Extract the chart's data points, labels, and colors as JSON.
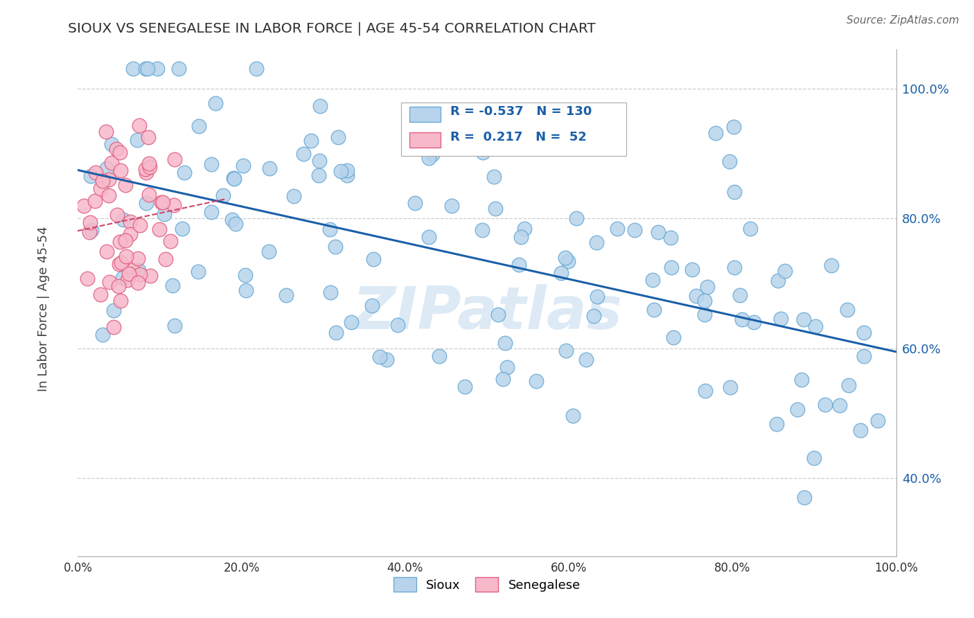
{
  "title": "SIOUX VS SENEGALESE IN LABOR FORCE | AGE 45-54 CORRELATION CHART",
  "source_text": "Source: ZipAtlas.com",
  "ylabel": "In Labor Force | Age 45-54",
  "watermark": "ZIPatlas",
  "sioux_R": -0.537,
  "sioux_N": 130,
  "senegalese_R": 0.217,
  "senegalese_N": 52,
  "sioux_color": "#b8d4ec",
  "sioux_edge_color": "#6aaad4",
  "senegalese_color": "#f7b8ca",
  "senegalese_edge_color": "#e06080",
  "sioux_line_color": "#1a5fa8",
  "senegalese_line_color": "#cc4466",
  "background_color": "#ffffff",
  "grid_color": "#cccccc",
  "title_color": "#303030",
  "legend_text_color": "#1a5fa8",
  "ytick_color": "#1a5fa8",
  "xtick_color": "#303030",
  "xlim": [
    0.0,
    1.0
  ],
  "ylim": [
    0.28,
    1.06
  ],
  "xtick_values": [
    0.0,
    0.2,
    0.4,
    0.6,
    0.8,
    1.0
  ],
  "xtick_labels": [
    "0.0%",
    "20.0%",
    "40.0%",
    "60.0%",
    "80.0%",
    "100.0%"
  ],
  "ytick_values": [
    0.4,
    0.6,
    0.8,
    1.0
  ],
  "ytick_labels": [
    "40.0%",
    "60.0%",
    "80.0%",
    "100.0%"
  ],
  "sioux_seed": 42,
  "senegalese_seed": 123
}
